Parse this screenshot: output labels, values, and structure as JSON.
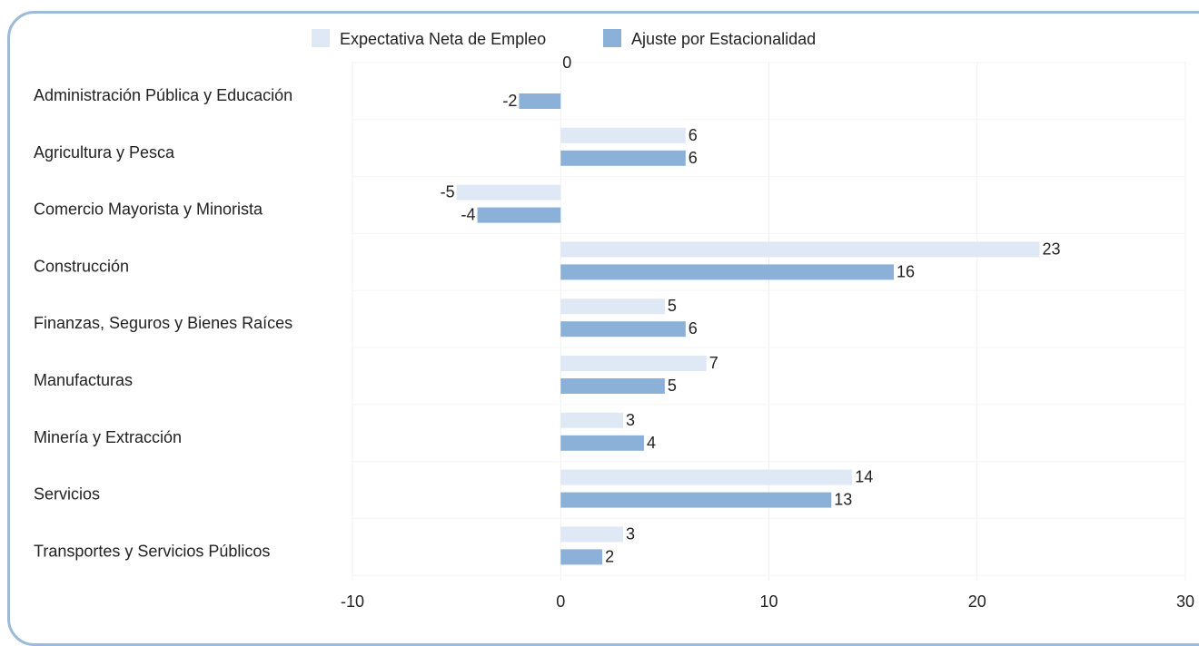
{
  "chart_data": {
    "type": "bar",
    "orientation": "horizontal",
    "categories": [
      "Administración Pública y Educación",
      "Agricultura y Pesca",
      "Comercio Mayorista y Minorista",
      "Construcción",
      "Finanzas, Seguros y Bienes Raíces",
      "Manufacturas",
      "Minería y Extracción",
      "Servicios",
      "Transportes y Servicios Públicos"
    ],
    "series": [
      {
        "name": "Expectativa Neta de Empleo",
        "color": "#dfe9f5",
        "values": [
          0,
          6,
          -5,
          23,
          5,
          7,
          3,
          14,
          3
        ]
      },
      {
        "name": "Ajuste por Estacionalidad",
        "color": "#8cb1d9",
        "values": [
          -2,
          6,
          -4,
          16,
          6,
          5,
          4,
          13,
          2
        ]
      }
    ],
    "xlim": [
      -10,
      30
    ],
    "xticks": [
      -10,
      0,
      10,
      20,
      30
    ],
    "grid": true,
    "legend_position": "top"
  }
}
